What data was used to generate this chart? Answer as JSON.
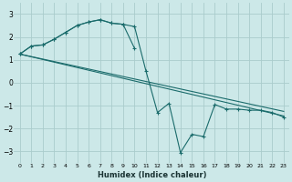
{
  "bg_color": "#cce8e8",
  "grid_color": "#aacccc",
  "line_color": "#1a6b6b",
  "xlabel": "Humidex (Indice chaleur)",
  "xlim": [
    -0.5,
    23.5
  ],
  "ylim": [
    -3.5,
    3.5
  ],
  "yticks": [
    -3,
    -2,
    -1,
    0,
    1,
    2,
    3
  ],
  "line_volatile_x": [
    0,
    1,
    2,
    3,
    4,
    5,
    6,
    7,
    8,
    9,
    10,
    11,
    12,
    13,
    14,
    15,
    16,
    17,
    18,
    19,
    20,
    21,
    22,
    23
  ],
  "line_volatile_y": [
    1.25,
    1.6,
    1.65,
    1.9,
    2.2,
    2.5,
    2.65,
    2.75,
    2.6,
    2.55,
    2.45,
    0.5,
    -1.3,
    -0.9,
    -3.05,
    -2.25,
    -2.35,
    -0.95,
    -1.15,
    -1.15,
    -1.2,
    -1.2,
    -1.3,
    -1.5
  ],
  "line_smooth_x": [
    0,
    1,
    2,
    3,
    4,
    5,
    6,
    7,
    8,
    9,
    10
  ],
  "line_smooth_y": [
    1.25,
    1.6,
    1.65,
    1.9,
    2.2,
    2.5,
    2.65,
    2.75,
    2.6,
    2.55,
    1.5
  ],
  "trend1_x": [
    0,
    23
  ],
  "trend1_y": [
    1.25,
    -1.45
  ],
  "trend2_x": [
    0,
    23
  ],
  "trend2_y": [
    1.25,
    -1.25
  ]
}
